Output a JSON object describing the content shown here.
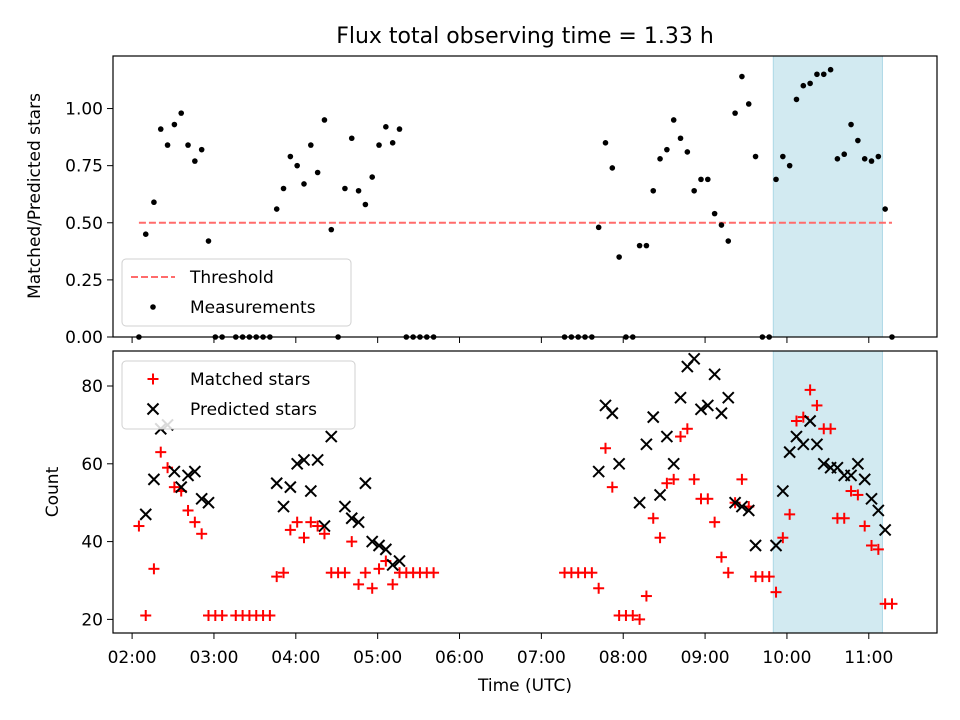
{
  "title": "Flux total observing time = 1.33 h",
  "colors": {
    "threshold": "#ff6b6b",
    "measurement": "#000000",
    "matched": "#ff0000",
    "predicted": "#000000",
    "highlight": "#add8e6"
  },
  "chart_data": [
    {
      "type": "scatter",
      "ylabel": "Matched/Predicted stars",
      "ylim": [
        0,
        1.23
      ],
      "yticks": [
        0.0,
        0.25,
        0.5,
        0.75,
        1.0
      ],
      "ytick_labels": [
        "0.00",
        "0.25",
        "0.50",
        "0.75",
        "1.00"
      ],
      "legend": {
        "placement": "lower-left",
        "entries": [
          "Threshold",
          "Measurements"
        ]
      },
      "highlight_span": [
        "09:50",
        "11:10"
      ],
      "series": [
        {
          "name": "Threshold",
          "style": "dashed-line",
          "points": [
            [
              "02:05",
              0.5
            ],
            [
              "11:17",
              0.5
            ]
          ]
        },
        {
          "name": "Measurements",
          "style": "dot",
          "points": [
            [
              "02:05",
              0.0
            ],
            [
              "02:10",
              0.45
            ],
            [
              "02:16",
              0.59
            ],
            [
              "02:21",
              0.91
            ],
            [
              "02:26",
              0.84
            ],
            [
              "02:31",
              0.93
            ],
            [
              "02:36",
              0.98
            ],
            [
              "02:41",
              0.84
            ],
            [
              "02:46",
              0.77
            ],
            [
              "02:51",
              0.82
            ],
            [
              "02:56",
              0.42
            ],
            [
              "03:01",
              0.0
            ],
            [
              "03:06",
              0.0
            ],
            [
              "03:16",
              0.0
            ],
            [
              "03:21",
              0.0
            ],
            [
              "03:26",
              0.0
            ],
            [
              "03:31",
              0.0
            ],
            [
              "03:36",
              0.0
            ],
            [
              "03:41",
              0.0
            ],
            [
              "03:46",
              0.56
            ],
            [
              "03:51",
              0.65
            ],
            [
              "03:56",
              0.79
            ],
            [
              "04:01",
              0.75
            ],
            [
              "04:06",
              0.67
            ],
            [
              "04:11",
              0.84
            ],
            [
              "04:16",
              0.72
            ],
            [
              "04:21",
              0.95
            ],
            [
              "04:26",
              0.47
            ],
            [
              "04:31",
              0.0
            ],
            [
              "04:36",
              0.65
            ],
            [
              "04:41",
              0.87
            ],
            [
              "04:46",
              0.64
            ],
            [
              "04:51",
              0.58
            ],
            [
              "04:56",
              0.7
            ],
            [
              "05:01",
              0.84
            ],
            [
              "05:06",
              0.92
            ],
            [
              "05:11",
              0.85
            ],
            [
              "05:16",
              0.91
            ],
            [
              "05:21",
              0.0
            ],
            [
              "05:26",
              0.0
            ],
            [
              "05:31",
              0.0
            ],
            [
              "05:36",
              0.0
            ],
            [
              "05:41",
              0.0
            ],
            [
              "07:17",
              0.0
            ],
            [
              "07:22",
              0.0
            ],
            [
              "07:27",
              0.0
            ],
            [
              "07:32",
              0.0
            ],
            [
              "07:37",
              0.0
            ],
            [
              "07:42",
              0.48
            ],
            [
              "07:47",
              0.85
            ],
            [
              "07:52",
              0.74
            ],
            [
              "07:57",
              0.35
            ],
            [
              "08:02",
              0.0
            ],
            [
              "08:07",
              0.0
            ],
            [
              "08:12",
              0.4
            ],
            [
              "08:17",
              0.4
            ],
            [
              "08:22",
              0.64
            ],
            [
              "08:27",
              0.78
            ],
            [
              "08:32",
              0.82
            ],
            [
              "08:37",
              0.95
            ],
            [
              "08:42",
              0.87
            ],
            [
              "08:47",
              0.81
            ],
            [
              "08:52",
              0.64
            ],
            [
              "08:57",
              0.69
            ],
            [
              "09:02",
              0.69
            ],
            [
              "09:07",
              0.54
            ],
            [
              "09:12",
              0.49
            ],
            [
              "09:17",
              0.42
            ],
            [
              "09:22",
              0.98
            ],
            [
              "09:27",
              1.14
            ],
            [
              "09:32",
              1.02
            ],
            [
              "09:37",
              0.79
            ],
            [
              "09:42",
              0.0
            ],
            [
              "09:47",
              0.0
            ],
            [
              "09:52",
              0.69
            ],
            [
              "09:57",
              0.79
            ],
            [
              "10:02",
              0.75
            ],
            [
              "10:07",
              1.04
            ],
            [
              "10:12",
              1.1
            ],
            [
              "10:17",
              1.11
            ],
            [
              "10:22",
              1.15
            ],
            [
              "10:27",
              1.15
            ],
            [
              "10:32",
              1.17
            ],
            [
              "10:37",
              0.78
            ],
            [
              "10:42",
              0.8
            ],
            [
              "10:47",
              0.93
            ],
            [
              "10:52",
              0.86
            ],
            [
              "10:57",
              0.78
            ],
            [
              "11:02",
              0.77
            ],
            [
              "11:07",
              0.79
            ],
            [
              "11:12",
              0.56
            ],
            [
              "11:17",
              0.0
            ]
          ]
        }
      ]
    },
    {
      "type": "scatter",
      "xlabel": "Time (UTC)",
      "ylabel": "Count",
      "xlim": [
        "01:46",
        "11:50"
      ],
      "xticks": [
        "02:00",
        "03:00",
        "04:00",
        "05:00",
        "06:00",
        "07:00",
        "08:00",
        "09:00",
        "10:00",
        "11:00"
      ],
      "ylim": [
        16.5,
        89
      ],
      "yticks": [
        20,
        40,
        60,
        80
      ],
      "legend": {
        "placement": "upper-left",
        "entries": [
          "Matched stars",
          "Predicted stars"
        ]
      },
      "highlight_span": [
        "09:50",
        "11:10"
      ],
      "series": [
        {
          "name": "Matched stars",
          "style": "plus",
          "points": [
            [
              "02:05",
              44
            ],
            [
              "02:10",
              21
            ],
            [
              "02:16",
              33
            ],
            [
              "02:21",
              63
            ],
            [
              "02:26",
              59
            ],
            [
              "02:31",
              54
            ],
            [
              "02:36",
              53
            ],
            [
              "02:41",
              48
            ],
            [
              "02:46",
              45
            ],
            [
              "02:51",
              42
            ],
            [
              "02:56",
              21
            ],
            [
              "03:01",
              21
            ],
            [
              "03:06",
              21
            ],
            [
              "03:16",
              21
            ],
            [
              "03:21",
              21
            ],
            [
              "03:26",
              21
            ],
            [
              "03:31",
              21
            ],
            [
              "03:36",
              21
            ],
            [
              "03:41",
              21
            ],
            [
              "03:46",
              31
            ],
            [
              "03:51",
              32
            ],
            [
              "03:56",
              43
            ],
            [
              "04:01",
              45
            ],
            [
              "04:06",
              41
            ],
            [
              "04:11",
              45
            ],
            [
              "04:16",
              44
            ],
            [
              "04:21",
              42
            ],
            [
              "04:26",
              32
            ],
            [
              "04:31",
              32
            ],
            [
              "04:36",
              32
            ],
            [
              "04:41",
              40
            ],
            [
              "04:46",
              29
            ],
            [
              "04:51",
              32
            ],
            [
              "04:56",
              28
            ],
            [
              "05:01",
              33
            ],
            [
              "05:06",
              35
            ],
            [
              "05:11",
              29
            ],
            [
              "05:16",
              32
            ],
            [
              "05:21",
              32
            ],
            [
              "05:26",
              32
            ],
            [
              "05:31",
              32
            ],
            [
              "05:36",
              32
            ],
            [
              "05:41",
              32
            ],
            [
              "07:17",
              32
            ],
            [
              "07:22",
              32
            ],
            [
              "07:27",
              32
            ],
            [
              "07:32",
              32
            ],
            [
              "07:37",
              32
            ],
            [
              "07:42",
              28
            ],
            [
              "07:47",
              64
            ],
            [
              "07:52",
              54
            ],
            [
              "07:57",
              21
            ],
            [
              "08:02",
              21
            ],
            [
              "08:07",
              21
            ],
            [
              "08:12",
              20
            ],
            [
              "08:17",
              26
            ],
            [
              "08:22",
              46
            ],
            [
              "08:27",
              41
            ],
            [
              "08:32",
              55
            ],
            [
              "08:37",
              56
            ],
            [
              "08:42",
              67
            ],
            [
              "08:47",
              69
            ],
            [
              "08:52",
              56
            ],
            [
              "08:57",
              51
            ],
            [
              "09:02",
              51
            ],
            [
              "09:07",
              45
            ],
            [
              "09:12",
              36
            ],
            [
              "09:17",
              32
            ],
            [
              "09:22",
              50
            ],
            [
              "09:27",
              56
            ],
            [
              "09:32",
              49
            ],
            [
              "09:37",
              31
            ],
            [
              "09:42",
              31
            ],
            [
              "09:47",
              31
            ],
            [
              "09:52",
              27
            ],
            [
              "09:57",
              41
            ],
            [
              "10:02",
              47
            ],
            [
              "10:07",
              71
            ],
            [
              "10:12",
              72
            ],
            [
              "10:17",
              79
            ],
            [
              "10:22",
              75
            ],
            [
              "10:27",
              69
            ],
            [
              "10:32",
              69
            ],
            [
              "10:37",
              46
            ],
            [
              "10:42",
              46
            ],
            [
              "10:47",
              53
            ],
            [
              "10:52",
              52
            ],
            [
              "10:57",
              44
            ],
            [
              "11:02",
              39
            ],
            [
              "11:07",
              38
            ],
            [
              "11:12",
              24
            ],
            [
              "11:17",
              24
            ]
          ]
        },
        {
          "name": "Predicted stars",
          "style": "x",
          "points": [
            [
              "02:10",
              47
            ],
            [
              "02:16",
              56
            ],
            [
              "02:21",
              69
            ],
            [
              "02:26",
              70
            ],
            [
              "02:31",
              58
            ],
            [
              "02:36",
              54
            ],
            [
              "02:41",
              57
            ],
            [
              "02:46",
              58
            ],
            [
              "02:51",
              51
            ],
            [
              "02:56",
              50
            ],
            [
              "03:46",
              55
            ],
            [
              "03:51",
              49
            ],
            [
              "03:56",
              54
            ],
            [
              "04:01",
              60
            ],
            [
              "04:06",
              61
            ],
            [
              "04:11",
              53
            ],
            [
              "04:16",
              61
            ],
            [
              "04:21",
              44
            ],
            [
              "04:26",
              67
            ],
            [
              "04:36",
              49
            ],
            [
              "04:41",
              46
            ],
            [
              "04:46",
              45
            ],
            [
              "04:51",
              55
            ],
            [
              "04:56",
              40
            ],
            [
              "05:01",
              39
            ],
            [
              "05:06",
              38
            ],
            [
              "05:11",
              34
            ],
            [
              "05:16",
              35
            ],
            [
              "07:42",
              58
            ],
            [
              "07:47",
              75
            ],
            [
              "07:52",
              73
            ],
            [
              "07:57",
              60
            ],
            [
              "08:12",
              50
            ],
            [
              "08:17",
              65
            ],
            [
              "08:22",
              72
            ],
            [
              "08:27",
              52
            ],
            [
              "08:32",
              67
            ],
            [
              "08:37",
              60
            ],
            [
              "08:42",
              77
            ],
            [
              "08:47",
              85
            ],
            [
              "08:52",
              87
            ],
            [
              "08:57",
              74
            ],
            [
              "09:02",
              75
            ],
            [
              "09:07",
              83
            ],
            [
              "09:12",
              73
            ],
            [
              "09:17",
              77
            ],
            [
              "09:22",
              50
            ],
            [
              "09:27",
              49
            ],
            [
              "09:32",
              48
            ],
            [
              "09:37",
              39
            ],
            [
              "09:52",
              39
            ],
            [
              "09:57",
              53
            ],
            [
              "10:02",
              63
            ],
            [
              "10:07",
              67
            ],
            [
              "10:12",
              65
            ],
            [
              "10:17",
              71
            ],
            [
              "10:22",
              65
            ],
            [
              "10:27",
              60
            ],
            [
              "10:32",
              59
            ],
            [
              "10:37",
              59
            ],
            [
              "10:42",
              57
            ],
            [
              "10:47",
              57
            ],
            [
              "10:52",
              60
            ],
            [
              "10:57",
              56
            ],
            [
              "11:02",
              51
            ],
            [
              "11:07",
              48
            ],
            [
              "11:12",
              43
            ]
          ]
        }
      ]
    }
  ]
}
